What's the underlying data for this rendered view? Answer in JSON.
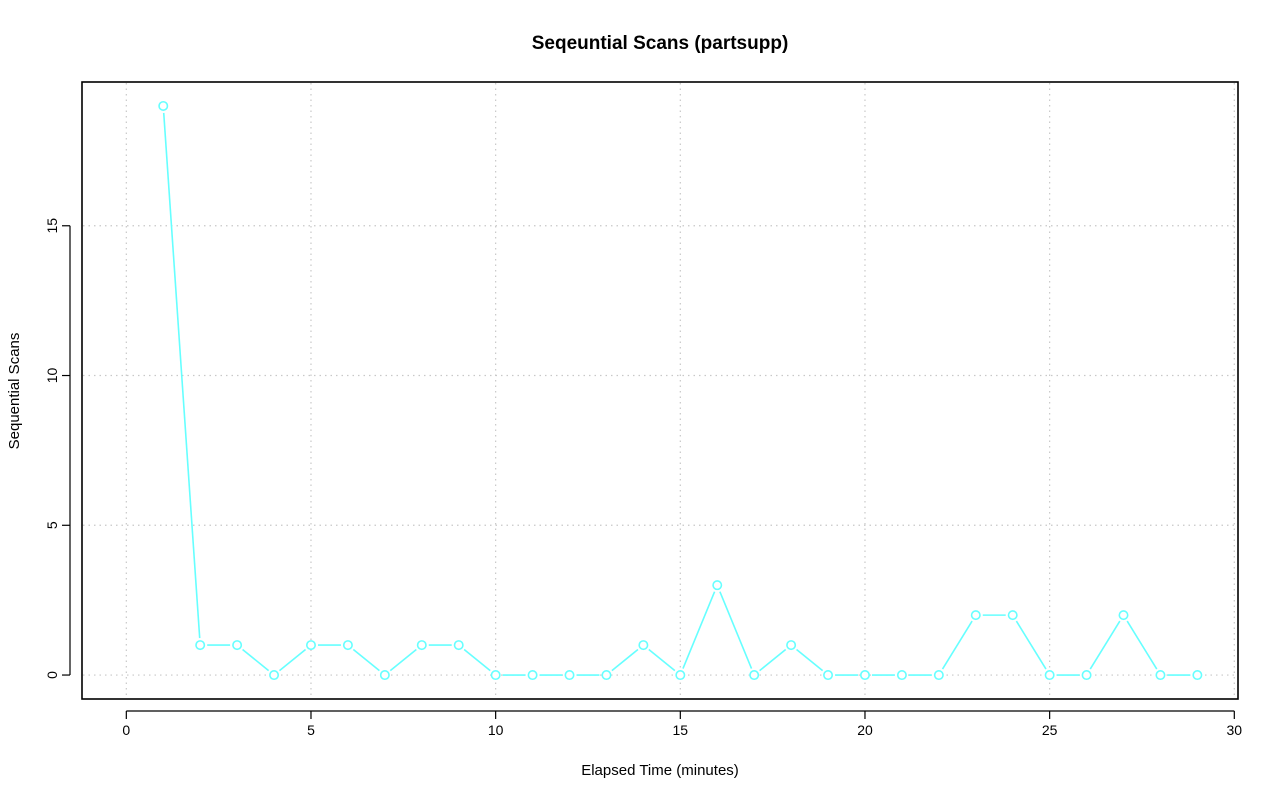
{
  "chart_data": {
    "type": "line",
    "title": "Seqeuntial Scans (partsupp)",
    "xlabel": "Elapsed Time (minutes)",
    "ylabel": "Sequential Scans",
    "xlim": [
      -1.2,
      30.1
    ],
    "ylim": [
      -0.8,
      19.8
    ],
    "x_ticks": [
      0,
      5,
      10,
      15,
      20,
      25,
      30
    ],
    "y_ticks": [
      0,
      5,
      10,
      15
    ],
    "grid": true,
    "series": [
      {
        "color": "#66ffff",
        "x": [
          1,
          2,
          3,
          4,
          5,
          6,
          7,
          8,
          9,
          10,
          11,
          12,
          13,
          14,
          15,
          16,
          17,
          18,
          19,
          20,
          21,
          22,
          23,
          24,
          25,
          26,
          27,
          28,
          29
        ],
        "y": [
          19,
          1,
          1,
          0,
          1,
          1,
          0,
          1,
          1,
          0,
          0,
          0,
          0,
          1,
          0,
          3,
          0,
          1,
          0,
          0,
          0,
          0,
          2,
          2,
          0,
          0,
          2,
          0,
          0
        ]
      }
    ]
  }
}
